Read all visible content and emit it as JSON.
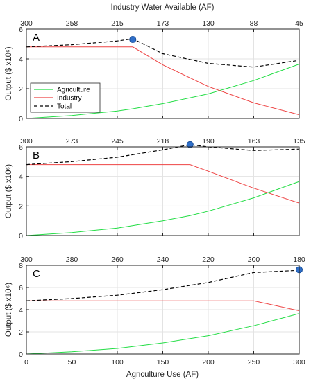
{
  "figure": {
    "top_xlabel": "Industry Water Available (AF)",
    "bottom_xlabel": "Agriculture Use (AF)",
    "ylabel": "Output ($ x10⁶)"
  },
  "legend": {
    "entries": [
      {
        "label": "Agriculture",
        "color": "#22dd44",
        "dash": false
      },
      {
        "label": "Industry",
        "color": "#ee4444",
        "dash": false
      },
      {
        "label": "Total",
        "color": "#000000",
        "dash": true
      }
    ],
    "placement": "left"
  },
  "chart_data": [
    {
      "type": "line",
      "panel_label": "A",
      "xlabel": "Agriculture Use (AF)",
      "xlim": [
        0,
        300
      ],
      "ylim": [
        0,
        6
      ],
      "yticks": [
        0,
        2,
        4,
        6
      ],
      "xticks": [
        0,
        50,
        100,
        150,
        200,
        250,
        300
      ],
      "top_axis": {
        "label": "Industry Water Available (AF)",
        "tick_labels": [
          "300",
          "258",
          "215",
          "173",
          "130",
          "88",
          "45"
        ]
      },
      "grid": true,
      "optimum": {
        "x": 117,
        "y": 5.3
      },
      "series": [
        {
          "name": "Agriculture",
          "x": [
            0,
            50,
            100,
            117,
            150,
            200,
            250,
            300
          ],
          "y": [
            0,
            0.2,
            0.5,
            0.65,
            1.0,
            1.65,
            2.55,
            3.65
          ]
        },
        {
          "name": "Industry",
          "x": [
            0,
            50,
            100,
            117,
            150,
            200,
            250,
            300
          ],
          "y": [
            4.8,
            4.8,
            4.8,
            4.8,
            3.6,
            2.15,
            1.05,
            0.25
          ]
        },
        {
          "name": "Total",
          "x": [
            0,
            50,
            100,
            117,
            150,
            200,
            250,
            300
          ],
          "y": [
            4.8,
            4.95,
            5.2,
            5.35,
            4.35,
            3.7,
            3.45,
            3.9
          ]
        }
      ]
    },
    {
      "type": "line",
      "panel_label": "B",
      "xlabel": "Agriculture Use (AF)",
      "xlim": [
        0,
        300
      ],
      "ylim": [
        0,
        6
      ],
      "yticks": [
        0,
        2,
        4,
        6
      ],
      "xticks": [
        0,
        50,
        100,
        150,
        200,
        250,
        300
      ],
      "top_axis": {
        "label": "Industry Water Available (AF)",
        "tick_labels": [
          "300",
          "273",
          "245",
          "218",
          "190",
          "163",
          "135"
        ]
      },
      "grid": true,
      "optimum": {
        "x": 180,
        "y": 6.15
      },
      "series": [
        {
          "name": "Agriculture",
          "x": [
            0,
            50,
            100,
            150,
            180,
            200,
            250,
            300
          ],
          "y": [
            0,
            0.2,
            0.5,
            1.0,
            1.35,
            1.65,
            2.55,
            3.65
          ]
        },
        {
          "name": "Industry",
          "x": [
            0,
            50,
            100,
            150,
            180,
            200,
            250,
            300
          ],
          "y": [
            4.8,
            4.8,
            4.8,
            4.8,
            4.8,
            4.35,
            3.2,
            2.2
          ]
        },
        {
          "name": "Total",
          "x": [
            0,
            50,
            100,
            150,
            180,
            200,
            250,
            300
          ],
          "y": [
            4.8,
            5.0,
            5.3,
            5.8,
            6.15,
            6.0,
            5.75,
            5.85
          ]
        }
      ]
    },
    {
      "type": "line",
      "panel_label": "C",
      "xlabel": "Agriculture Use (AF)",
      "xlim": [
        0,
        300
      ],
      "ylim": [
        0,
        8
      ],
      "yticks": [
        0,
        2,
        4,
        6,
        8
      ],
      "xticks": [
        0,
        50,
        100,
        150,
        200,
        250,
        300
      ],
      "top_axis": {
        "label": "Industry Water Available (AF)",
        "tick_labels": [
          "300",
          "280",
          "260",
          "240",
          "220",
          "200",
          "180"
        ]
      },
      "grid": true,
      "optimum": {
        "x": 300,
        "y": 7.6
      },
      "series": [
        {
          "name": "Agriculture",
          "x": [
            0,
            50,
            100,
            150,
            200,
            250,
            300
          ],
          "y": [
            0,
            0.2,
            0.5,
            1.0,
            1.65,
            2.55,
            3.65
          ]
        },
        {
          "name": "Industry",
          "x": [
            0,
            50,
            100,
            150,
            200,
            250,
            300
          ],
          "y": [
            4.8,
            4.8,
            4.8,
            4.8,
            4.8,
            4.8,
            3.9
          ]
        },
        {
          "name": "Total",
          "x": [
            0,
            50,
            100,
            150,
            200,
            250,
            300
          ],
          "y": [
            4.8,
            5.0,
            5.3,
            5.8,
            6.45,
            7.35,
            7.55
          ]
        }
      ]
    }
  ]
}
